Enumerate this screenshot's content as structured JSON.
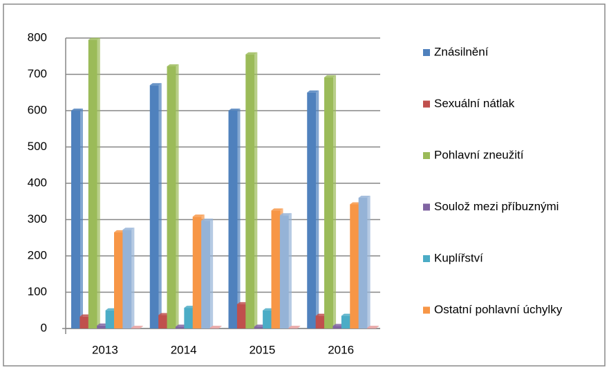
{
  "chart_data": {
    "type": "bar",
    "categories": [
      "2013",
      "2014",
      "2015",
      "2016"
    ],
    "series": [
      {
        "name": "Znásilnění",
        "color": "#4f81bd",
        "values": [
          600,
          670,
          600,
          650
        ]
      },
      {
        "name": "Sexuální nátlak",
        "color": "#c0504d",
        "values": [
          33,
          37,
          67,
          35
        ]
      },
      {
        "name": "Pohlavní zneužití",
        "color": "#9bbb59",
        "values": [
          795,
          722,
          755,
          692
        ]
      },
      {
        "name": "Soulož mezi příbuznými",
        "color": "#8064a2",
        "values": [
          8,
          5,
          5,
          7
        ]
      },
      {
        "name": "Kuplířství",
        "color": "#4bacc6",
        "values": [
          50,
          57,
          50,
          35
        ]
      },
      {
        "name": "Ostatní pohlavní úchylky",
        "color": "#f79646",
        "values": [
          265,
          308,
          325,
          342
        ]
      },
      {
        "name": null,
        "color": "#95b3d7",
        "values": [
          272,
          297,
          312,
          360
        ]
      },
      {
        "name": null,
        "color": "#e6a0a0",
        "values": [
          2,
          2,
          2,
          2
        ]
      }
    ],
    "ylim": [
      0,
      800
    ],
    "yticks": [
      0,
      100,
      200,
      300,
      400,
      500,
      600,
      700,
      800
    ],
    "grid": true
  }
}
